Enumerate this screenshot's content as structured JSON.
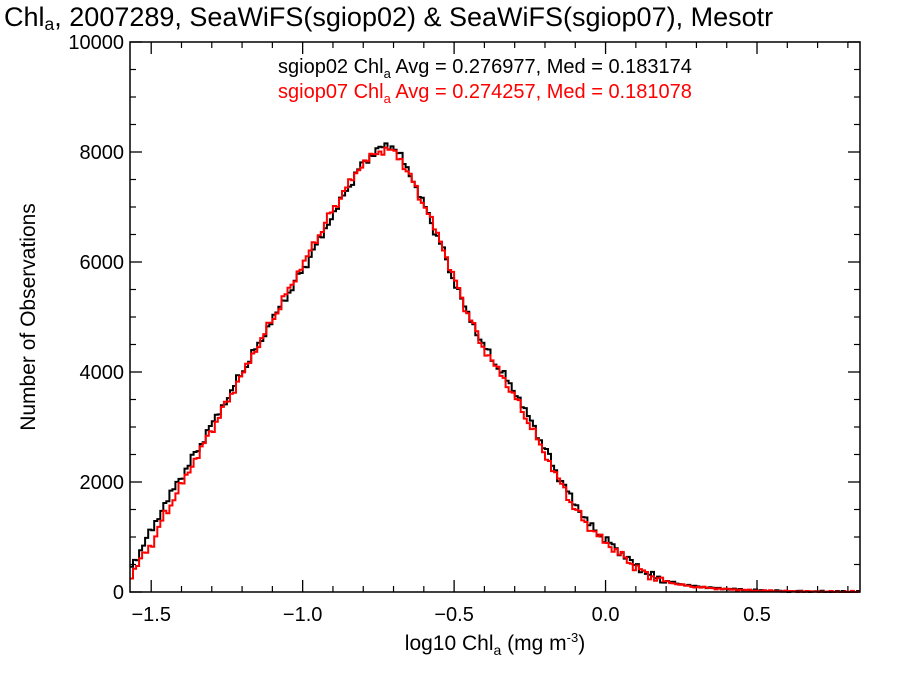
{
  "title": {
    "prefix": "Chl",
    "sub": "a",
    "rest": ", 2007289, SeaWiFS(sgiop02) & SeaWiFS(sgiop07), Mesotr"
  },
  "legend": [
    {
      "pre": "sgiop02 Chl",
      "sub": "a",
      "post": " Avg = 0.276977, Med = 0.183174",
      "color": "#000000"
    },
    {
      "pre": "sgiop07 Chl",
      "sub": "a",
      "post": " Avg = 0.274257, Med = 0.181078",
      "color": "#ff0000"
    }
  ],
  "chart_data": {
    "type": "line",
    "step": true,
    "x_axis": {
      "label_pre": "log10 Chl",
      "label_sub": "a",
      "label_post": " (mg m",
      "label_sup": "-3",
      "label_end": ")",
      "range": [
        -1.57,
        0.84
      ],
      "ticks": [
        -1.5,
        -1.0,
        -0.5,
        0.0,
        0.5
      ],
      "tick_labels": [
        "−1.5",
        "−1.0",
        "−0.5",
        "0.0",
        "0.5"
      ]
    },
    "y_axis": {
      "label": "Number of Observations",
      "range": [
        0,
        10000
      ],
      "ticks": [
        0,
        2000,
        4000,
        6000,
        8000,
        10000
      ],
      "tick_labels": [
        "0",
        "2000",
        "4000",
        "6000",
        "8000",
        "10000"
      ]
    },
    "series": [
      {
        "name": "sgiop02",
        "color": "#000000",
        "x": [
          -1.57,
          -1.5,
          -1.45,
          -1.4,
          -1.35,
          -1.3,
          -1.25,
          -1.2,
          -1.15,
          -1.1,
          -1.05,
          -1.0,
          -0.95,
          -0.9,
          -0.85,
          -0.8,
          -0.75,
          -0.72,
          -0.7,
          -0.68,
          -0.65,
          -0.6,
          -0.55,
          -0.5,
          -0.45,
          -0.4,
          -0.35,
          -0.3,
          -0.25,
          -0.2,
          -0.15,
          -0.1,
          -0.05,
          0.0,
          0.05,
          0.1,
          0.15,
          0.2,
          0.25,
          0.3,
          0.4,
          0.5,
          0.6,
          0.7,
          0.84
        ],
        "y": [
          420,
          1100,
          1650,
          2100,
          2550,
          3050,
          3500,
          4000,
          4450,
          4950,
          5400,
          5850,
          6350,
          6850,
          7350,
          7800,
          8050,
          8120,
          8100,
          7950,
          7650,
          7050,
          6400,
          5650,
          5000,
          4450,
          4050,
          3650,
          3150,
          2600,
          2050,
          1600,
          1200,
          950,
          720,
          480,
          300,
          200,
          140,
          100,
          55,
          30,
          15,
          8,
          5
        ]
      },
      {
        "name": "sgiop07",
        "color": "#ff0000",
        "x": [
          -1.57,
          -1.5,
          -1.45,
          -1.4,
          -1.35,
          -1.3,
          -1.25,
          -1.2,
          -1.15,
          -1.1,
          -1.05,
          -1.0,
          -0.95,
          -0.9,
          -0.85,
          -0.8,
          -0.75,
          -0.72,
          -0.7,
          -0.68,
          -0.65,
          -0.6,
          -0.55,
          -0.5,
          -0.45,
          -0.4,
          -0.35,
          -0.3,
          -0.25,
          -0.2,
          -0.15,
          -0.1,
          -0.05,
          0.0,
          0.05,
          0.1,
          0.15,
          0.2,
          0.25,
          0.3,
          0.4,
          0.5,
          0.6,
          0.7,
          0.84
        ],
        "y": [
          300,
          850,
          1450,
          1950,
          2450,
          2950,
          3450,
          3950,
          4450,
          4950,
          5450,
          5950,
          6450,
          6950,
          7400,
          7800,
          8000,
          8050,
          8000,
          7900,
          7600,
          7050,
          6450,
          5700,
          5000,
          4400,
          4000,
          3550,
          3050,
          2500,
          2000,
          1500,
          1150,
          900,
          680,
          450,
          280,
          190,
          130,
          90,
          50,
          25,
          12,
          6,
          4
        ]
      }
    ]
  }
}
